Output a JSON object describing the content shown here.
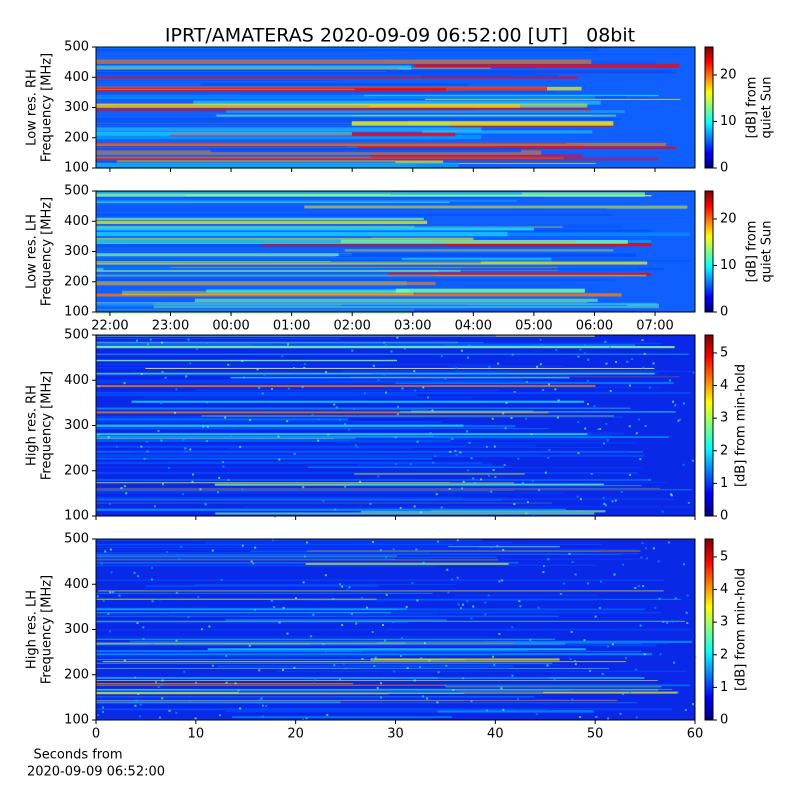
{
  "title": "IPRT/AMATERAS 2020-09-09 06:52:00 [UT]   08bit",
  "chart_data": [
    {
      "type": "heatmap",
      "colormap": "jet",
      "ylabel": [
        "Low res. RH",
        "Frequency [MHz]"
      ],
      "ylim": [
        100,
        500
      ],
      "yticks": [
        100,
        200,
        300,
        400,
        500
      ],
      "xlim": [
        21.77,
        31.66
      ],
      "xticks": [
        {
          "value": 22,
          "label": "22:00"
        },
        {
          "value": 23,
          "label": "23:00"
        },
        {
          "value": 24,
          "label": "00:00"
        },
        {
          "value": 25,
          "label": "01:00"
        },
        {
          "value": 26,
          "label": "02:00"
        },
        {
          "value": 27,
          "label": "03:00"
        },
        {
          "value": 28,
          "label": "04:00"
        },
        {
          "value": 29,
          "label": "05:00"
        },
        {
          "value": 30,
          "label": "06:00"
        },
        {
          "value": 31,
          "label": "07:00"
        }
      ],
      "xtick_labels": false,
      "colorbar": {
        "label": [
          "[dB] from",
          "quiet Sun"
        ],
        "lim": [
          0,
          26
        ],
        "ticks": [
          0,
          10,
          20
        ]
      }
    },
    {
      "type": "heatmap",
      "colormap": "jet",
      "ylabel": [
        "Low res. LH",
        "Frequency [MHz]"
      ],
      "ylim": [
        100,
        500
      ],
      "yticks": [
        100,
        200,
        300,
        400,
        500
      ],
      "xlim": [
        21.77,
        31.66
      ],
      "xticks": [
        {
          "value": 22,
          "label": "22:00"
        },
        {
          "value": 23,
          "label": "23:00"
        },
        {
          "value": 24,
          "label": "00:00"
        },
        {
          "value": 25,
          "label": "01:00"
        },
        {
          "value": 26,
          "label": "02:00"
        },
        {
          "value": 27,
          "label": "03:00"
        },
        {
          "value": 28,
          "label": "04:00"
        },
        {
          "value": 29,
          "label": "05:00"
        },
        {
          "value": 30,
          "label": "06:00"
        },
        {
          "value": 31,
          "label": "07:00"
        }
      ],
      "xtick_labels": true,
      "colorbar": {
        "label": [
          "[dB] from",
          "quiet Sun"
        ],
        "lim": [
          0,
          26
        ],
        "ticks": [
          0,
          10,
          20
        ]
      }
    },
    {
      "type": "heatmap",
      "colormap": "jet",
      "ylabel": [
        "High res. RH",
        "Frequency [MHz]"
      ],
      "ylim": [
        100,
        500
      ],
      "yticks": [
        100,
        200,
        300,
        400,
        500
      ],
      "xlim": [
        0,
        60
      ],
      "xticks": [
        0,
        10,
        20,
        30,
        40,
        50,
        60
      ],
      "xtick_labels": false,
      "colorbar": {
        "label": [
          "[dB] from min-hold"
        ],
        "lim": [
          0,
          5.55
        ],
        "ticks": [
          0,
          1,
          2,
          3,
          4,
          5
        ]
      }
    },
    {
      "type": "heatmap",
      "colormap": "jet",
      "ylabel": [
        "High res. LH",
        "Frequency [MHz]"
      ],
      "ylim": [
        100,
        500
      ],
      "yticks": [
        100,
        200,
        300,
        400,
        500
      ],
      "xlim": [
        0,
        60
      ],
      "xticks": [
        0,
        10,
        20,
        30,
        40,
        50,
        60
      ],
      "xtick_labels": true,
      "xlabel": [
        "Seconds from",
        "2020-09-09 06:52:00"
      ],
      "colorbar": {
        "label": [
          "[dB] from min-hold"
        ],
        "lim": [
          0,
          5.55
        ],
        "ticks": [
          0,
          1,
          2,
          3,
          4,
          5
        ]
      }
    }
  ]
}
